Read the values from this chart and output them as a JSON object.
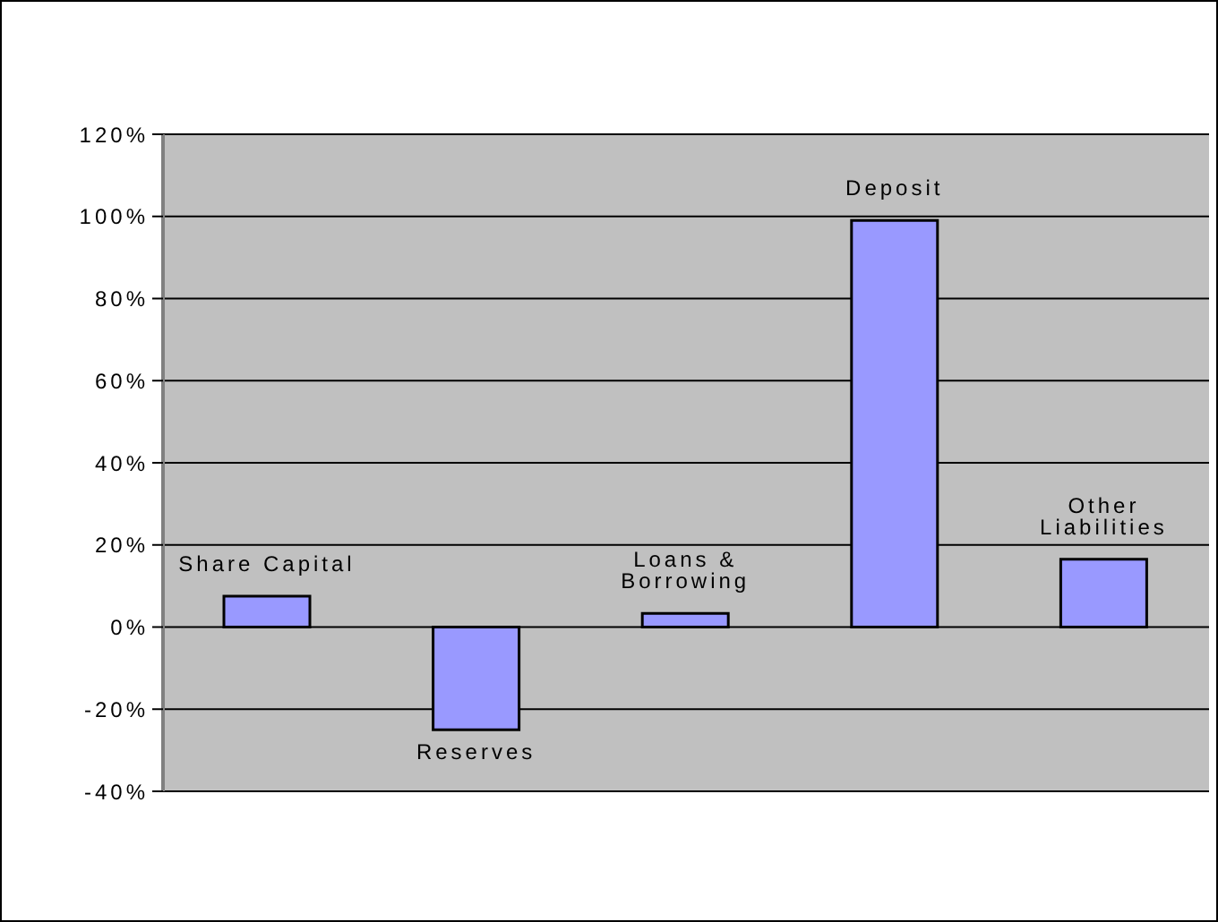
{
  "chart_data": {
    "type": "bar",
    "categories": [
      "Share Capital",
      "Reserves",
      "Loans & Borrowing",
      "Deposit",
      "Other Liabilities"
    ],
    "values": [
      7.5,
      -25,
      3.3,
      99,
      16.5
    ],
    "color": "#9999ff",
    "ylim": [
      -40,
      120
    ],
    "yticks": [
      {
        "value": -40,
        "label": "-40%"
      },
      {
        "value": -20,
        "label": "-20%"
      },
      {
        "value": 0,
        "label": "0%"
      },
      {
        "value": 20,
        "label": "20%"
      },
      {
        "value": 40,
        "label": "40%"
      },
      {
        "value": 60,
        "label": "60%"
      },
      {
        "value": 80,
        "label": "80%"
      },
      {
        "value": 100,
        "label": "100%"
      },
      {
        "value": 120,
        "label": "120%"
      }
    ],
    "grid": "y",
    "tick_labels": "y"
  }
}
